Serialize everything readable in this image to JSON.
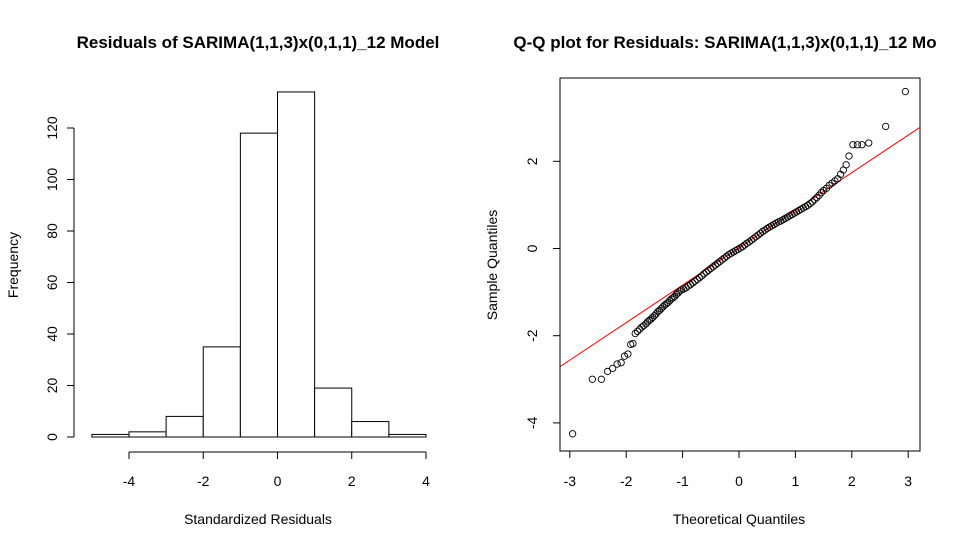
{
  "chart_data": [
    {
      "type": "bar",
      "subtype": "histogram",
      "title": "Residuals of SARIMA(1,1,3)x(0,1,1)_12 Model",
      "xlabel": "Standardized Residuals",
      "ylabel": "Frequency",
      "bins": [
        [
          -5,
          -4
        ],
        [
          -4,
          -3
        ],
        [
          -3,
          -2
        ],
        [
          -2,
          -1
        ],
        [
          -1,
          0
        ],
        [
          0,
          1
        ],
        [
          1,
          2
        ],
        [
          2,
          3
        ],
        [
          3,
          4
        ]
      ],
      "values": [
        1,
        2,
        8,
        35,
        118,
        134,
        19,
        6,
        1
      ],
      "xlim": [
        -5,
        4
      ],
      "ylim": [
        0,
        140
      ],
      "xticks": [
        -4,
        -2,
        0,
        2,
        4
      ],
      "yticks": [
        0,
        20,
        40,
        60,
        80,
        100,
        120
      ],
      "bar_fill": "#ffffff",
      "bar_stroke": "#000000"
    },
    {
      "type": "scatter",
      "subtype": "qq-plot",
      "title": "Q-Q plot for Residuals: SARIMA(1,1,3)x(0,1,1)_12 Mo",
      "xlabel": "Theoretical Quantiles",
      "ylabel": "Sample Quantiles",
      "xlim": [
        -3.2,
        3.2
      ],
      "ylim": [
        -4.5,
        3.9
      ],
      "xticks": [
        -3,
        -2,
        -1,
        0,
        1,
        2,
        3
      ],
      "yticks": [
        -4,
        -2,
        0,
        2
      ],
      "grid": false,
      "reference_line": {
        "slope": 0.86,
        "intercept": 0.02,
        "color": "#ff0000"
      },
      "points": [
        [
          -2.95,
          -4.25
        ],
        [
          -2.6,
          -3.0
        ],
        [
          -2.44,
          -3.0
        ],
        [
          -2.33,
          -2.82
        ],
        [
          -2.24,
          -2.75
        ],
        [
          -2.16,
          -2.65
        ],
        [
          -2.09,
          -2.62
        ],
        [
          -2.03,
          -2.47
        ],
        [
          -1.97,
          -2.42
        ],
        [
          -1.92,
          -2.2
        ],
        [
          -1.88,
          -2.18
        ],
        [
          -1.84,
          -1.95
        ],
        [
          -1.8,
          -1.9
        ],
        [
          -1.76,
          -1.85
        ],
        [
          -1.72,
          -1.8
        ],
        [
          -1.69,
          -1.77
        ],
        [
          -1.65,
          -1.73
        ],
        [
          -1.62,
          -1.68
        ],
        [
          -1.59,
          -1.65
        ],
        [
          -1.56,
          -1.62
        ],
        [
          -1.53,
          -1.58
        ],
        [
          -1.5,
          -1.54
        ],
        [
          -1.47,
          -1.5
        ],
        [
          -1.44,
          -1.45
        ],
        [
          -1.41,
          -1.42
        ],
        [
          -1.38,
          -1.38
        ],
        [
          -1.35,
          -1.34
        ],
        [
          -1.32,
          -1.3
        ],
        [
          -1.29,
          -1.27
        ],
        [
          -1.26,
          -1.24
        ],
        [
          -1.23,
          -1.2
        ],
        [
          -1.2,
          -1.16
        ],
        [
          -1.17,
          -1.13
        ],
        [
          -1.14,
          -1.1
        ],
        [
          -1.11,
          -1.05
        ],
        [
          -1.08,
          -1.02
        ],
        [
          -1.05,
          -0.98
        ],
        [
          -1.02,
          -0.95
        ],
        [
          -0.98,
          -0.93
        ],
        [
          -0.94,
          -0.9
        ],
        [
          -0.9,
          -0.86
        ],
        [
          -0.86,
          -0.83
        ],
        [
          -0.82,
          -0.79
        ],
        [
          -0.78,
          -0.75
        ],
        [
          -0.74,
          -0.71
        ],
        [
          -0.7,
          -0.67
        ],
        [
          -0.66,
          -0.63
        ],
        [
          -0.62,
          -0.58
        ],
        [
          -0.58,
          -0.54
        ],
        [
          -0.54,
          -0.5
        ],
        [
          -0.5,
          -0.46
        ],
        [
          -0.46,
          -0.42
        ],
        [
          -0.42,
          -0.38
        ],
        [
          -0.38,
          -0.34
        ],
        [
          -0.34,
          -0.3
        ],
        [
          -0.3,
          -0.26
        ],
        [
          -0.26,
          -0.22
        ],
        [
          -0.22,
          -0.18
        ],
        [
          -0.18,
          -0.14
        ],
        [
          -0.14,
          -0.11
        ],
        [
          -0.1,
          -0.08
        ],
        [
          -0.06,
          -0.05
        ],
        [
          -0.02,
          -0.02
        ],
        [
          0.02,
          0.01
        ],
        [
          0.06,
          0.04
        ],
        [
          0.1,
          0.08
        ],
        [
          0.14,
          0.12
        ],
        [
          0.18,
          0.15
        ],
        [
          0.22,
          0.19
        ],
        [
          0.26,
          0.23
        ],
        [
          0.3,
          0.27
        ],
        [
          0.34,
          0.31
        ],
        [
          0.38,
          0.35
        ],
        [
          0.42,
          0.39
        ],
        [
          0.46,
          0.42
        ],
        [
          0.5,
          0.46
        ],
        [
          0.54,
          0.49
        ],
        [
          0.58,
          0.52
        ],
        [
          0.62,
          0.55
        ],
        [
          0.66,
          0.58
        ],
        [
          0.7,
          0.61
        ],
        [
          0.74,
          0.63
        ],
        [
          0.78,
          0.66
        ],
        [
          0.82,
          0.69
        ],
        [
          0.86,
          0.72
        ],
        [
          0.9,
          0.75
        ],
        [
          0.94,
          0.78
        ],
        [
          0.98,
          0.81
        ],
        [
          1.02,
          0.84
        ],
        [
          1.06,
          0.87
        ],
        [
          1.1,
          0.9
        ],
        [
          1.14,
          0.93
        ],
        [
          1.18,
          0.96
        ],
        [
          1.22,
          0.99
        ],
        [
          1.26,
          1.03
        ],
        [
          1.3,
          1.07
        ],
        [
          1.34,
          1.12
        ],
        [
          1.38,
          1.17
        ],
        [
          1.42,
          1.22
        ],
        [
          1.46,
          1.28
        ],
        [
          1.5,
          1.33
        ],
        [
          1.55,
          1.38
        ],
        [
          1.6,
          1.45
        ],
        [
          1.65,
          1.5
        ],
        [
          1.7,
          1.55
        ],
        [
          1.75,
          1.6
        ],
        [
          1.8,
          1.7
        ],
        [
          1.85,
          1.8
        ],
        [
          1.9,
          1.92
        ],
        [
          1.95,
          2.12
        ],
        [
          2.02,
          2.38
        ],
        [
          2.1,
          2.38
        ],
        [
          2.18,
          2.38
        ],
        [
          2.3,
          2.42
        ],
        [
          2.6,
          2.8
        ],
        [
          2.95,
          3.6
        ]
      ]
    }
  ]
}
